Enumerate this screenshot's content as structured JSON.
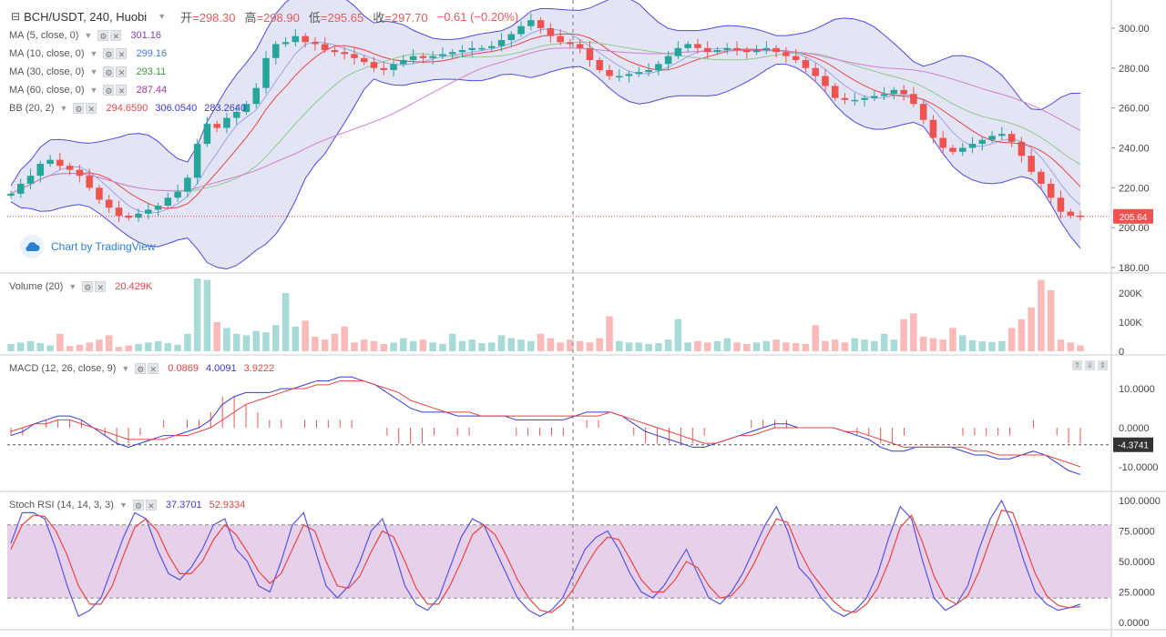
{
  "symbol": {
    "title": "BCH/USDT, 240, Huobi",
    "menu_icon": "hamburger-icon",
    "ohlc": [
      {
        "label": "开",
        "value": "=298.30"
      },
      {
        "label": "高",
        "value": "=298.90"
      },
      {
        "label": "低",
        "value": "=295.65"
      },
      {
        "label": "收",
        "value": "=297.70"
      }
    ],
    "change": "−0.61 (−0.20%)"
  },
  "indicators": [
    {
      "name": "MA (5, close, 0)",
      "values": [
        "301.16"
      ],
      "colors": [
        "#7b3fb8"
      ]
    },
    {
      "name": "MA (10, close, 0)",
      "values": [
        "299.16"
      ],
      "colors": [
        "#3f7fd6"
      ]
    },
    {
      "name": "MA (30, close, 0)",
      "values": [
        "293.11"
      ],
      "colors": [
        "#3c9a3c"
      ]
    },
    {
      "name": "MA (60, close, 0)",
      "values": [
        "287.44"
      ],
      "colors": [
        "#a3319a"
      ]
    },
    {
      "name": "BB (20, 2)",
      "values": [
        "294.6590",
        "306.0540",
        "283.2640"
      ],
      "colors": [
        "#e84545",
        "#3a3ad6",
        "#3a3ad6"
      ]
    }
  ],
  "volume_legend": {
    "name": "Volume (20)",
    "value": "20.429K"
  },
  "macd_legend": {
    "name": "MACD (12, 26, close, 9)",
    "values": [
      "0.0869",
      "4.0091",
      "3.9222"
    ],
    "colors": [
      "#e84545",
      "#3a3ad6",
      "#e84545"
    ]
  },
  "stoch_legend": {
    "name": "Stoch RSI (14, 14, 3, 3)",
    "values": [
      "37.3701",
      "52.9334"
    ],
    "colors": [
      "#3a3ad6",
      "#e84545"
    ]
  },
  "watermark": "Chart by TradingView",
  "price_axis": {
    "ticks": [
      "300.00",
      "280.00",
      "260.00",
      "240.00",
      "220.00",
      "200.00",
      "180.00"
    ],
    "last_price": "205.64",
    "min": 180,
    "max": 310
  },
  "volume_axis": {
    "ticks": [
      "200K",
      "100K",
      "0"
    ],
    "max": 250000
  },
  "macd_axis": {
    "ticks": [
      "10.0000",
      "0.0000",
      "-10.0000"
    ],
    "current": "-4.3741",
    "min": -14,
    "max": 14
  },
  "stoch_axis": {
    "ticks": [
      "100.0000",
      "75.0000",
      "50.0000",
      "25.0000",
      "0.0000"
    ],
    "upper_band": 80,
    "lower_band": 20
  },
  "colors": {
    "up": "#26a69a",
    "down": "#ef5350",
    "bb_fill": "#d7d9f0",
    "bb_line": "#4c4ce0",
    "stoch_band": "#e3c8e6"
  },
  "chart_data": {
    "type": "candlestick",
    "close_series": [
      217,
      222,
      226,
      232,
      234,
      231,
      229,
      226,
      220,
      214,
      210,
      206,
      205,
      207,
      209,
      211,
      215,
      218,
      225,
      242,
      252,
      250,
      255,
      258,
      262,
      270,
      285,
      292,
      293,
      296,
      293,
      292,
      289,
      288,
      287,
      285,
      283,
      280,
      279,
      282,
      284,
      286,
      285,
      286,
      287,
      288,
      289,
      290,
      290,
      291,
      294,
      297,
      301,
      304,
      300,
      296,
      293,
      292,
      290,
      284,
      279,
      276,
      276,
      277,
      278,
      279,
      282,
      286,
      290,
      292,
      290,
      288,
      289,
      290,
      289,
      288,
      289,
      290,
      288,
      286,
      284,
      280,
      276,
      271,
      265,
      264,
      264,
      265,
      266,
      267,
      269,
      267,
      262,
      254,
      245,
      240,
      238,
      240,
      242,
      244,
      246,
      247,
      243,
      236,
      228,
      222,
      215,
      208,
      206,
      205.6
    ],
    "volume": [
      25,
      30,
      35,
      28,
      20,
      60,
      18,
      22,
      30,
      40,
      55,
      15,
      20,
      25,
      30,
      35,
      28,
      22,
      60,
      250,
      245,
      100,
      80,
      60,
      55,
      70,
      65,
      90,
      200,
      85,
      105,
      50,
      40,
      60,
      85,
      30,
      40,
      35,
      25,
      30,
      45,
      35,
      40,
      30,
      25,
      60,
      35,
      40,
      28,
      30,
      55,
      45,
      40,
      35,
      60,
      45,
      30,
      40,
      35,
      30,
      45,
      120,
      35,
      30,
      30,
      25,
      28,
      40,
      110,
      30,
      35,
      30,
      35,
      45,
      30,
      25,
      30,
      35,
      40,
      30,
      28,
      25,
      90,
      35,
      40,
      30,
      45,
      40,
      35,
      60,
      40,
      110,
      130,
      50,
      45,
      40,
      80,
      55,
      38,
      34,
      32,
      35,
      80,
      110,
      150,
      245,
      210,
      40,
      30,
      20
    ],
    "macd": [
      -2,
      -1,
      1,
      2,
      3,
      3,
      2,
      0,
      -2,
      -4,
      -5,
      -4,
      -3,
      -2,
      -2,
      -1,
      0,
      2,
      6,
      8,
      9,
      9,
      9,
      10,
      10,
      11,
      12,
      12,
      13,
      13,
      12,
      11,
      9,
      7,
      5,
      4,
      4,
      4,
      3,
      3,
      3,
      3,
      3,
      2,
      2,
      2,
      2,
      2,
      3,
      4,
      4,
      4,
      3,
      1,
      -1,
      -2,
      -3,
      -4,
      -5,
      -5,
      -4,
      -3,
      -2,
      -1,
      0,
      1,
      1,
      0,
      0,
      0,
      0,
      -1,
      -2,
      -3,
      -5,
      -6,
      -6,
      -5,
      -5,
      -5,
      -5,
      -6,
      -7,
      -7,
      -8,
      -8,
      -7,
      -6,
      -7,
      -9,
      -11,
      -12
    ],
    "signal": [
      -1,
      0,
      1,
      1,
      2,
      2,
      1,
      0,
      -1,
      -2,
      -3,
      -3,
      -3,
      -3,
      -2,
      -2,
      -1,
      0,
      2,
      4,
      6,
      7,
      8,
      9,
      10,
      10,
      11,
      11,
      12,
      12,
      12,
      11,
      10,
      9,
      7,
      6,
      5,
      4,
      4,
      4,
      3,
      3,
      3,
      3,
      3,
      3,
      3,
      3,
      3,
      3,
      3,
      4,
      3,
      2,
      1,
      0,
      -1,
      -2,
      -3,
      -4,
      -4,
      -3,
      -2,
      -2,
      -1,
      0,
      0,
      0,
      0,
      0,
      0,
      -1,
      -1,
      -2,
      -3,
      -4,
      -5,
      -5,
      -5,
      -5,
      -5,
      -5,
      -6,
      -6,
      -7,
      -7,
      -7,
      -7,
      -7,
      -8,
      -9,
      -10
    ],
    "stoch_k": [
      65,
      90,
      90,
      85,
      60,
      30,
      5,
      10,
      20,
      45,
      70,
      90,
      85,
      60,
      40,
      35,
      45,
      60,
      80,
      85,
      60,
      50,
      30,
      25,
      50,
      80,
      90,
      60,
      30,
      20,
      30,
      50,
      75,
      85,
      60,
      30,
      15,
      10,
      20,
      45,
      70,
      85,
      80,
      60,
      40,
      20,
      10,
      5,
      10,
      20,
      40,
      60,
      70,
      75,
      60,
      40,
      25,
      20,
      30,
      45,
      60,
      40,
      20,
      15,
      25,
      40,
      60,
      80,
      95,
      75,
      45,
      35,
      20,
      10,
      5,
      10,
      20,
      40,
      70,
      95,
      85,
      50,
      20,
      10,
      15,
      30,
      60,
      85,
      100,
      80,
      50,
      25,
      15,
      10,
      12,
      15
    ],
    "stoch_d": [
      60,
      80,
      88,
      87,
      75,
      55,
      30,
      15,
      15,
      30,
      55,
      78,
      85,
      75,
      55,
      40,
      40,
      50,
      68,
      80,
      72,
      58,
      42,
      32,
      40,
      60,
      80,
      75,
      50,
      30,
      28,
      38,
      58,
      75,
      70,
      50,
      28,
      15,
      15,
      30,
      50,
      72,
      80,
      72,
      55,
      35,
      20,
      10,
      8,
      15,
      28,
      45,
      60,
      70,
      68,
      52,
      35,
      25,
      25,
      35,
      50,
      45,
      30,
      20,
      22,
      32,
      48,
      68,
      85,
      82,
      60,
      42,
      30,
      18,
      10,
      8,
      15,
      28,
      50,
      78,
      88,
      65,
      38,
      20,
      15,
      22,
      42,
      68,
      92,
      90,
      65,
      40,
      22,
      14,
      12,
      13
    ]
  }
}
